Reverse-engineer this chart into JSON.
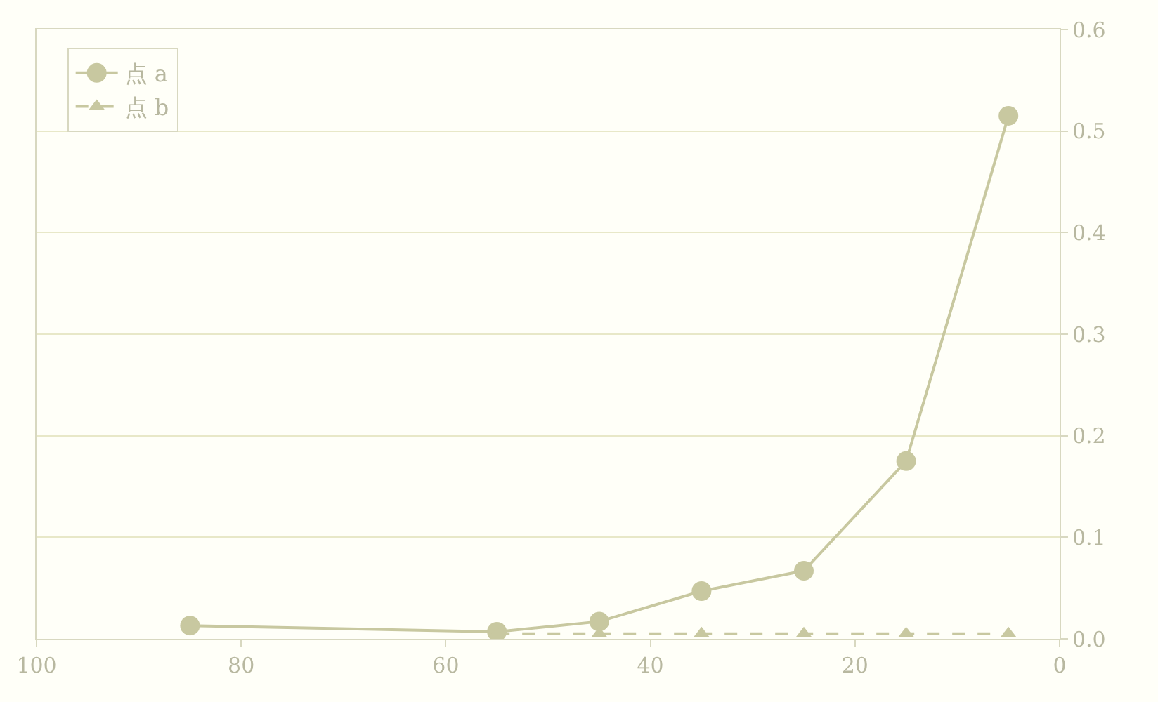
{
  "chart_data": {
    "type": "line",
    "x": [
      85,
      55,
      45,
      35,
      25,
      15,
      5
    ],
    "series": [
      {
        "name": "点 a",
        "color": "#c8c8a0",
        "values": [
          0.013,
          0.007,
          0.017,
          0.047,
          0.067,
          0.175,
          0.515
        ],
        "marker": "circle",
        "line_style": "solid"
      },
      {
        "name": "点 b",
        "color": "#c8c8a0",
        "x": [
          55,
          45,
          35,
          25,
          15,
          5
        ],
        "values": [
          0.005,
          0.005,
          0.005,
          0.005,
          0.005,
          0.005
        ],
        "marker": "triangle",
        "line_style": "dashed"
      }
    ],
    "xlim": [
      100,
      0
    ],
    "xticks": [
      100,
      80,
      60,
      40,
      20,
      0
    ],
    "ylim": [
      0,
      0.6
    ],
    "yticks": [
      {
        "value": 0,
        "label": "0.0"
      },
      0.1,
      0.2,
      0.3,
      0.4,
      0.5,
      0.6
    ],
    "grid": "y",
    "legend": "top left"
  }
}
